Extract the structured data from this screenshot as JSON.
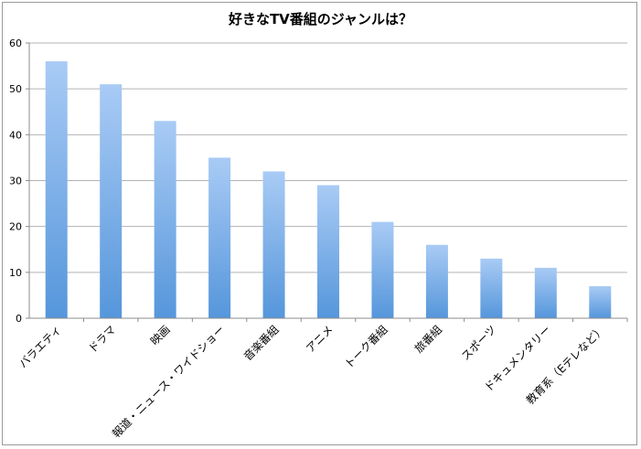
{
  "chart_data": {
    "type": "bar",
    "title": "好きなTV番組のジャンルは？",
    "xlabel": "",
    "ylabel": "",
    "categories": [
      "バラエティ",
      "ドラマ",
      "映画",
      "報道・ニュース・ワイドショー",
      "音楽番組",
      "アニメ",
      "トーク番組",
      "旅番組",
      "スポーツ",
      "ドキュメンタリー",
      "教育系（Eテレなど）"
    ],
    "values": [
      56,
      51,
      43,
      35,
      32,
      29,
      21,
      16,
      13,
      11,
      7
    ],
    "ylim": [
      0,
      60
    ],
    "yticks": [
      "0",
      "10",
      "20",
      "30",
      "40",
      "50",
      "60"
    ],
    "grid": true,
    "legend": "none",
    "colors": {
      "bar_top": "#a9cbf5",
      "bar_bottom": "#5596db",
      "grid": "#b3b3b3",
      "axis": "#8c8c8c"
    }
  }
}
